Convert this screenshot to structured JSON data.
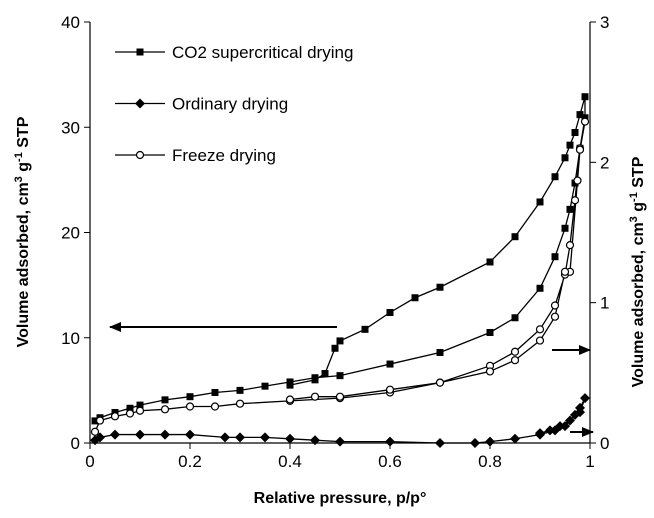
{
  "chart_data": {
    "type": "line",
    "xlabel": "Relative pressure, p/p°",
    "ylabel": [
      "Volume adsorbed, cm",
      "3",
      " g",
      "-1",
      " STP"
    ],
    "y2label": [
      "Volume adsorbed, cm",
      "3",
      " g",
      "-1",
      " STP"
    ],
    "xlim": [
      0,
      1
    ],
    "xticks": [
      0,
      0.2,
      0.4,
      0.6,
      0.8,
      1
    ],
    "ylim": [
      0,
      40
    ],
    "yticks": [
      0,
      10,
      20,
      30,
      40
    ],
    "y2lim": [
      0,
      3
    ],
    "y2ticks": [
      0,
      1,
      2,
      3
    ],
    "legend": "upper left",
    "series": [
      {
        "name": "CO2 supercritical drying",
        "color": "#000000",
        "marker": "square",
        "axis": "y",
        "x": [
          0.01,
          0.02,
          0.05,
          0.08,
          0.1,
          0.15,
          0.2,
          0.25,
          0.3,
          0.35,
          0.4,
          0.45,
          0.5,
          0.6,
          0.7,
          0.8,
          0.85,
          0.9,
          0.93,
          0.95,
          0.96,
          0.97,
          0.98,
          0.99,
          0.99,
          0.98,
          0.97,
          0.96,
          0.95,
          0.93,
          0.9,
          0.85,
          0.8,
          0.7,
          0.65,
          0.6,
          0.55,
          0.5,
          0.49,
          0.47,
          0.45,
          0.4
        ],
        "values": [
          2.1,
          2.4,
          2.9,
          3.3,
          3.6,
          4.1,
          4.4,
          4.8,
          5.0,
          5.4,
          5.8,
          6.2,
          6.4,
          7.5,
          8.6,
          10.5,
          11.9,
          14.7,
          17.7,
          20.4,
          22.2,
          24.7,
          28.0,
          30.9,
          32.9,
          31.2,
          29.5,
          28.3,
          27.1,
          25.3,
          22.9,
          19.6,
          17.2,
          14.8,
          13.8,
          12.4,
          10.8,
          9.7,
          9.0,
          6.6,
          6.0,
          5.5
        ]
      },
      {
        "name": "Ordinary drying",
        "color": "#000000",
        "marker": "diamond",
        "axis": "y2",
        "x": [
          0.01,
          0.02,
          0.05,
          0.1,
          0.15,
          0.2,
          0.27,
          0.3,
          0.35,
          0.4,
          0.45,
          0.5,
          0.6,
          0.7,
          0.77,
          0.8,
          0.85,
          0.9,
          0.93,
          0.95,
          0.97,
          0.98,
          0.99,
          0.98,
          0.96,
          0.94,
          0.92,
          0.9
        ],
        "values": [
          0.02,
          0.04,
          0.06,
          0.06,
          0.06,
          0.06,
          0.04,
          0.04,
          0.04,
          0.03,
          0.02,
          0.01,
          0.01,
          0.0,
          0.0,
          0.01,
          0.03,
          0.06,
          0.09,
          0.12,
          0.2,
          0.25,
          0.32,
          0.22,
          0.16,
          0.12,
          0.09,
          0.07
        ]
      },
      {
        "name": "Freeze drying",
        "color": "#000000",
        "marker": "circle",
        "axis": "y2",
        "x": [
          0.01,
          0.02,
          0.05,
          0.08,
          0.1,
          0.15,
          0.2,
          0.25,
          0.3,
          0.4,
          0.5,
          0.6,
          0.7,
          0.8,
          0.85,
          0.9,
          0.93,
          0.95,
          0.96,
          0.97,
          0.98,
          0.99,
          0.98,
          0.975,
          0.96,
          0.95,
          0.93,
          0.9,
          0.85,
          0.8,
          0.7,
          0.6,
          0.5,
          0.45,
          0.4
        ],
        "values": [
          0.08,
          0.16,
          0.19,
          0.21,
          0.23,
          0.24,
          0.26,
          0.26,
          0.28,
          0.3,
          0.32,
          0.36,
          0.43,
          0.55,
          0.65,
          0.81,
          0.98,
          1.2,
          1.41,
          1.73,
          2.1,
          2.29,
          2.09,
          1.87,
          1.22,
          1.22,
          0.9,
          0.73,
          0.59,
          0.51,
          0.43,
          0.38,
          0.33,
          0.33,
          0.31
        ]
      }
    ]
  }
}
